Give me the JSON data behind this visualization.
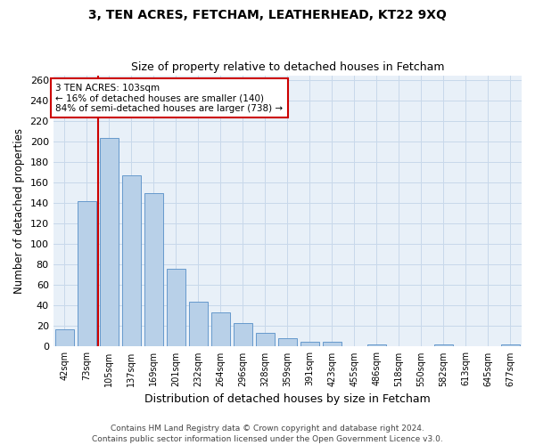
{
  "title": "3, TEN ACRES, FETCHAM, LEATHERHEAD, KT22 9XQ",
  "subtitle": "Size of property relative to detached houses in Fetcham",
  "xlabel": "Distribution of detached houses by size in Fetcham",
  "ylabel": "Number of detached properties",
  "footer_line1": "Contains HM Land Registry data © Crown copyright and database right 2024.",
  "footer_line2": "Contains public sector information licensed under the Open Government Licence v3.0.",
  "bin_labels": [
    "42sqm",
    "73sqm",
    "105sqm",
    "137sqm",
    "169sqm",
    "201sqm",
    "232sqm",
    "264sqm",
    "296sqm",
    "328sqm",
    "359sqm",
    "391sqm",
    "423sqm",
    "455sqm",
    "486sqm",
    "518sqm",
    "550sqm",
    "582sqm",
    "613sqm",
    "645sqm",
    "677sqm"
  ],
  "bar_values": [
    17,
    142,
    204,
    167,
    150,
    76,
    44,
    33,
    23,
    13,
    8,
    5,
    5,
    0,
    2,
    0,
    0,
    2,
    0,
    0,
    2
  ],
  "bar_color": "#b8d0e8",
  "bar_edge_color": "#6699cc",
  "grid_color": "#c8d8ea",
  "background_color": "#e8f0f8",
  "vline_x_index": 1.5,
  "vline_color": "#cc0000",
  "annotation_line1": "3 TEN ACRES: 103sqm",
  "annotation_line2": "← 16% of detached houses are smaller (140)",
  "annotation_line3": "84% of semi-detached houses are larger (738) →",
  "annotation_box_color": "#ffffff",
  "annotation_edge_color": "#cc0000",
  "ylim": [
    0,
    265
  ],
  "yticks": [
    0,
    20,
    40,
    60,
    80,
    100,
    120,
    140,
    160,
    180,
    200,
    220,
    240,
    260
  ],
  "title_fontsize": 10,
  "subtitle_fontsize": 9,
  "ylabel_fontsize": 8.5,
  "xlabel_fontsize": 9,
  "ytick_fontsize": 8,
  "xtick_fontsize": 7,
  "footer_fontsize": 6.5
}
